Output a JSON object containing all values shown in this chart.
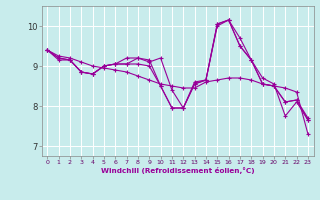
{
  "xlabel": "Windchill (Refroidissement éolien,°C)",
  "bg_color": "#c8ecec",
  "line_color": "#990099",
  "grid_color": "#ffffff",
  "xlim": [
    -0.5,
    23.5
  ],
  "ylim": [
    6.75,
    10.5
  ],
  "yticks": [
    7,
    8,
    9,
    10
  ],
  "xticks": [
    0,
    1,
    2,
    3,
    4,
    5,
    6,
    7,
    8,
    9,
    10,
    11,
    12,
    13,
    14,
    15,
    16,
    17,
    18,
    19,
    20,
    21,
    22,
    23
  ],
  "series": [
    [
      9.4,
      9.25,
      9.2,
      9.1,
      9.0,
      8.95,
      8.9,
      8.85,
      8.75,
      8.65,
      8.55,
      8.5,
      8.45,
      8.45,
      8.6,
      8.65,
      8.7,
      8.7,
      8.65,
      8.55,
      8.5,
      8.45,
      8.35,
      7.3
    ],
    [
      9.4,
      9.2,
      9.15,
      8.85,
      8.8,
      9.0,
      9.05,
      9.05,
      9.05,
      9.0,
      8.5,
      7.95,
      7.95,
      8.55,
      8.65,
      10.05,
      10.15,
      9.7,
      9.15,
      8.55,
      8.5,
      8.1,
      8.15,
      7.7
    ],
    [
      9.4,
      9.15,
      9.15,
      8.85,
      8.8,
      9.0,
      9.05,
      9.05,
      9.2,
      9.1,
      9.2,
      8.4,
      7.95,
      8.6,
      8.65,
      10.05,
      10.15,
      9.5,
      9.15,
      8.7,
      8.55,
      7.75,
      8.1,
      7.65
    ],
    [
      9.4,
      9.2,
      9.15,
      8.85,
      8.8,
      9.0,
      9.05,
      9.2,
      9.2,
      9.15,
      8.5,
      7.95,
      7.95,
      8.55,
      8.65,
      10.0,
      10.15,
      9.5,
      9.15,
      8.55,
      8.5,
      8.1,
      8.15,
      7.65
    ]
  ]
}
